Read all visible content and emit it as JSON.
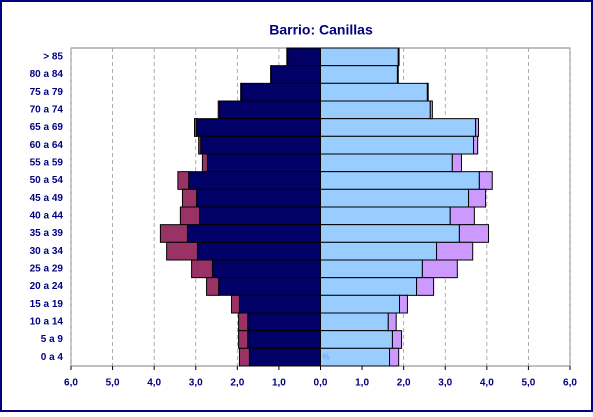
{
  "chart_data": {
    "type": "pyramid",
    "title": "Barrio: Canillas",
    "categories": [
      "> 85",
      "80 a 84",
      "75 a 79",
      "70 a 74",
      "65 a 69",
      "60 a 64",
      "55 a 59",
      "50 a 54",
      "45 a 49",
      "40 a 44",
      "35 a 39",
      "30 a 34",
      "25 a 29",
      "20 a 24",
      "15 a 19",
      "10 a 14",
      "5 a 9",
      "0 a 4"
    ],
    "series": [
      {
        "color": "#000066",
        "stack": "left",
        "values": [
          -0.79,
          -1.18,
          -1.9,
          -2.43,
          -2.98,
          -2.88,
          -2.72,
          -3.17,
          -2.98,
          -2.91,
          -3.2,
          -2.96,
          -2.6,
          -2.45,
          -1.95,
          -1.75,
          -1.75,
          -1.71
        ]
      },
      {
        "color": "#993366",
        "stack": "left",
        "values": [
          -0.02,
          -0.02,
          -0.02,
          -0.03,
          -0.05,
          -0.05,
          -0.12,
          -0.26,
          -0.34,
          -0.46,
          -0.65,
          -0.74,
          -0.5,
          -0.29,
          -0.19,
          -0.22,
          -0.22,
          -0.24
        ]
      },
      {
        "color": "#99ccff",
        "stack": "right",
        "values": [
          1.87,
          1.85,
          2.57,
          2.64,
          3.73,
          3.68,
          3.17,
          3.82,
          3.56,
          3.12,
          3.34,
          2.79,
          2.45,
          2.31,
          1.9,
          1.63,
          1.73,
          1.66
        ]
      },
      {
        "color": "#cc99ff",
        "stack": "right",
        "values": [
          0.02,
          0.02,
          0.02,
          0.05,
          0.07,
          0.1,
          0.22,
          0.31,
          0.41,
          0.58,
          0.7,
          0.87,
          0.84,
          0.41,
          0.19,
          0.19,
          0.22,
          0.22
        ]
      }
    ],
    "xlim": [
      -6,
      6
    ],
    "xticks": [
      {
        "value": -6,
        "label": "6,0"
      },
      {
        "value": -5,
        "label": "5,0"
      },
      {
        "value": -4,
        "label": "4,0"
      },
      {
        "value": -3,
        "label": "3,0"
      },
      {
        "value": -2,
        "label": "2,0"
      },
      {
        "value": -1,
        "label": "1,0"
      },
      {
        "value": 0,
        "label": "0,0"
      },
      {
        "value": 1,
        "label": "1,0"
      },
      {
        "value": 2,
        "label": "2,0"
      },
      {
        "value": 3,
        "label": "3,0"
      },
      {
        "value": 4,
        "label": "4,0"
      },
      {
        "value": 5,
        "label": "5,0"
      },
      {
        "value": 6,
        "label": "6,0"
      }
    ],
    "grid": true,
    "annotation": "%"
  }
}
